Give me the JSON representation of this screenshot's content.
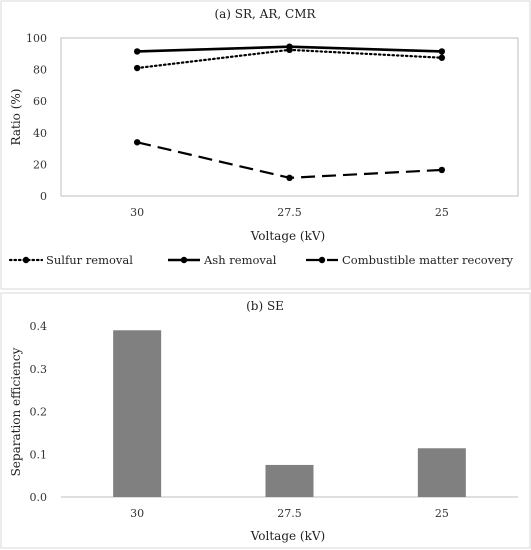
{
  "chart_data": [
    {
      "type": "line",
      "title": "(a) SR, AR, CMR",
      "xlabel": "Voltage (kV)",
      "ylabel": "Ratio (%)",
      "categories": [
        "30",
        "27.5",
        "25"
      ],
      "ylim": [
        0,
        100
      ],
      "yticks": [
        0,
        20,
        40,
        60,
        80,
        100
      ],
      "grid": false,
      "legend_position": "bottom",
      "series": [
        {
          "name": "Sulfur removal",
          "values": [
            81,
            92.5,
            87.5
          ],
          "line_style": "dotted",
          "color": "#000000"
        },
        {
          "name": "Ash removal",
          "values": [
            91.5,
            94.5,
            91.5
          ],
          "line_style": "solid",
          "color": "#000000"
        },
        {
          "name": "Combustible matter recovery",
          "values": [
            34,
            11.5,
            16.5
          ],
          "line_style": "dashed",
          "color": "#000000"
        }
      ]
    },
    {
      "type": "bar",
      "title": "(b) SE",
      "xlabel": "Voltage (kV)",
      "ylabel": "Separation efficiency",
      "categories": [
        "30",
        "27.5",
        "25"
      ],
      "values": [
        0.39,
        0.075,
        0.114
      ],
      "ylim": [
        0,
        0.4
      ],
      "yticks": [
        "0.0",
        "0.1",
        "0.2",
        "0.3",
        "0.4"
      ],
      "grid": false,
      "bar_color": "#808080"
    }
  ]
}
